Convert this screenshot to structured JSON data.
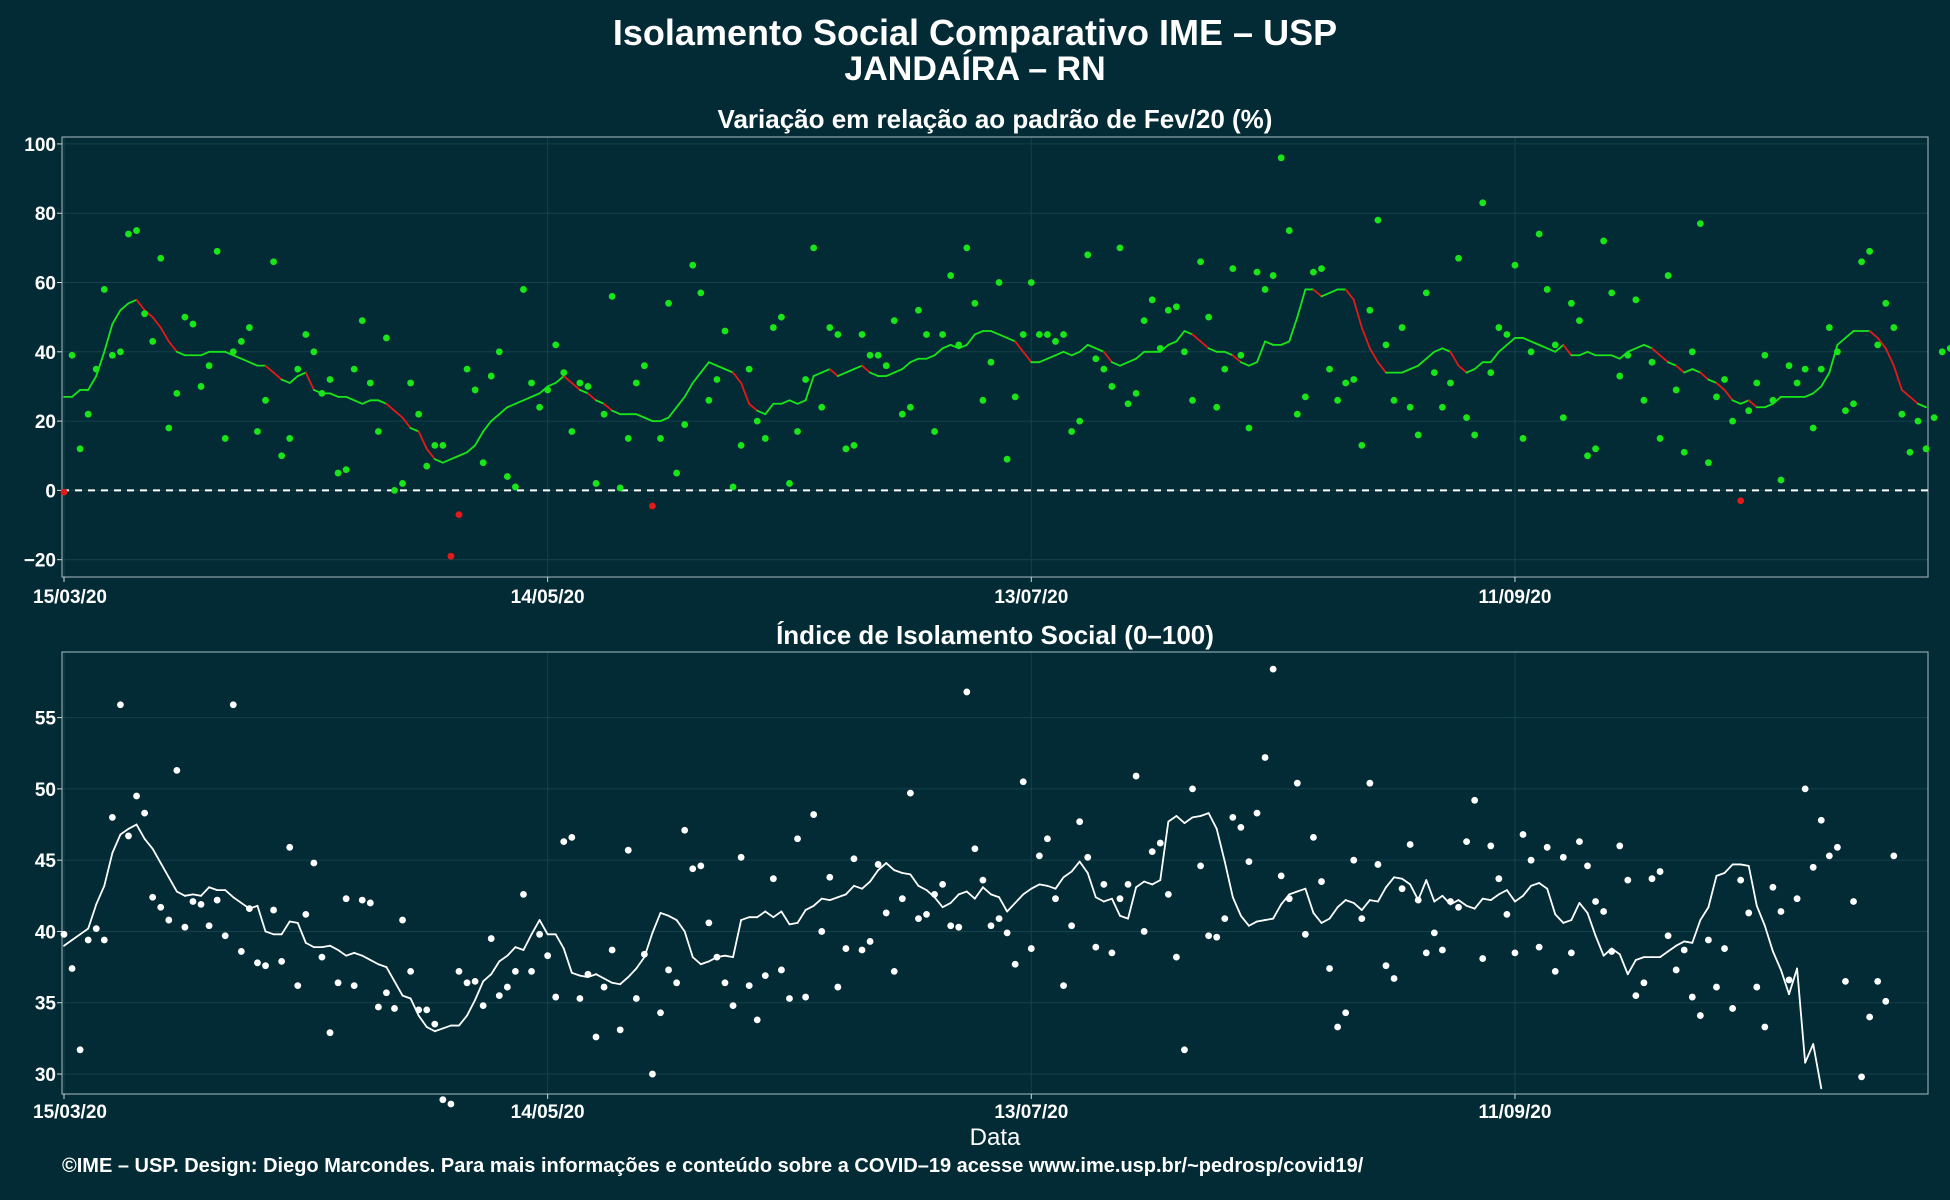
{
  "title": "Isolamento Social Comparativo IME – USP",
  "subtitle": "JANDAÍRA – RN",
  "footer": "©IME – USP. Design: Diego Marcondes. Para mais informações e conteúdo sobre a COVID–19 acesse www.ime.usp.br/~pedrosp/covid19/",
  "colors": {
    "background": "#022b35",
    "positive": "#19e619",
    "negative": "#e61919",
    "index": "#ffffff",
    "grid": "#14414b",
    "reference_line": "#ffffff"
  },
  "chart_data": [
    {
      "type": "scatter",
      "title": "Variação em relação ao padrão de Fev/20 (%)",
      "xlabel": "",
      "ylabel": "",
      "x_start": "2020-03-15",
      "days": 231,
      "xticks": [
        {
          "day": 0,
          "label": "15/03/20"
        },
        {
          "day": 60,
          "label": "14/05/20"
        },
        {
          "day": 120,
          "label": "13/07/20"
        },
        {
          "day": 180,
          "label": "11/09/20"
        }
      ],
      "ylim": [
        -25,
        102
      ],
      "yticks": [
        -20,
        0,
        20,
        40,
        60,
        80,
        100
      ],
      "ytick_labels": [
        "−20",
        "0",
        "20",
        "40",
        "60",
        "80",
        "100"
      ],
      "reference_line": 0,
      "grid": true,
      "series": [
        {
          "kind": "points",
          "values": [
            -0.5,
            39,
            12,
            22,
            35,
            58,
            39,
            40,
            74,
            75,
            51,
            43,
            67,
            18,
            28,
            50,
            48,
            30,
            36,
            69,
            15,
            40,
            43,
            47,
            17,
            26,
            66,
            10,
            15,
            35,
            45,
            40,
            28,
            32,
            5,
            6,
            35,
            49,
            31,
            17,
            44,
            0,
            2,
            31,
            22,
            7,
            13,
            13,
            -19,
            -7,
            35,
            29,
            8,
            33,
            40,
            4,
            1,
            58,
            31,
            24,
            29,
            42,
            34,
            17,
            31,
            30,
            2,
            22,
            56,
            0.7,
            15,
            31,
            36,
            -4.5,
            15,
            54,
            5,
            19,
            65,
            57,
            26,
            32,
            46,
            1,
            13,
            35,
            20,
            15,
            47,
            50,
            2,
            17,
            32,
            70,
            24,
            47,
            45,
            12,
            13,
            45,
            39,
            39,
            36,
            49,
            22,
            24,
            52,
            45,
            17,
            45,
            62,
            42,
            70,
            54,
            26,
            37,
            60,
            9,
            27,
            45,
            60,
            45,
            45,
            43,
            45,
            17,
            20,
            68,
            38,
            35,
            30,
            70,
            25,
            28,
            49,
            55,
            41,
            52,
            53,
            40,
            26,
            66,
            50,
            24,
            35,
            64,
            39,
            18,
            63,
            58,
            62,
            96,
            75,
            22,
            27,
            63,
            64,
            35,
            26,
            31,
            32,
            13,
            52,
            78,
            42,
            26,
            47,
            24,
            16,
            57,
            34,
            24,
            31,
            67,
            21,
            16,
            83,
            34,
            47,
            45,
            65,
            15,
            40,
            74,
            58,
            42,
            21,
            54,
            49,
            10,
            12,
            72,
            57,
            33,
            39,
            55,
            26,
            37,
            15,
            62,
            29,
            11,
            40,
            77,
            8,
            27,
            32,
            20,
            -3,
            23,
            31,
            39,
            26,
            3,
            36,
            31,
            35,
            18,
            35,
            47,
            40,
            23,
            25,
            66,
            69,
            42,
            54,
            47,
            22,
            11,
            20,
            12,
            21,
            40,
            41
          ]
        },
        {
          "kind": "moving_average",
          "values": [
            27,
            27,
            29,
            29,
            33,
            40,
            48,
            52,
            54,
            55,
            52,
            50,
            47,
            43,
            40,
            39,
            39,
            39,
            40,
            40,
            40,
            39,
            38,
            37,
            36,
            36,
            34,
            32,
            31,
            33,
            34,
            29,
            28,
            28,
            27,
            27,
            26,
            25,
            26,
            26,
            25,
            23,
            21,
            18,
            17,
            12,
            9,
            8,
            9,
            10,
            11,
            13,
            17,
            20,
            22,
            24,
            25,
            26,
            27,
            28,
            30,
            31,
            33,
            31,
            29,
            28,
            26,
            25,
            23,
            22,
            22,
            22,
            21,
            20,
            20,
            21,
            24,
            27,
            31,
            34,
            37,
            36,
            35,
            34,
            31,
            25,
            23,
            22,
            25,
            25,
            26,
            25,
            26,
            33,
            34,
            35,
            33,
            34,
            35,
            36,
            34,
            33,
            33,
            34,
            35,
            37,
            38,
            38,
            39,
            41,
            42,
            41,
            42,
            45,
            46,
            46,
            45,
            44,
            43,
            40,
            37,
            37,
            38,
            39,
            40,
            39,
            40,
            42,
            41,
            40,
            37,
            36,
            37,
            38,
            40,
            40,
            40,
            42,
            43,
            46,
            45,
            43,
            41,
            40,
            40,
            39,
            37,
            36,
            37,
            43,
            42,
            42,
            43,
            50,
            58,
            58,
            56,
            57,
            58,
            58,
            55,
            47,
            41,
            37,
            34,
            34,
            34,
            35,
            36,
            38,
            40,
            41,
            40,
            36,
            34,
            35,
            37,
            37,
            40,
            42,
            44,
            44,
            43,
            42,
            41,
            40,
            42,
            39,
            39,
            40,
            39,
            39,
            39,
            38,
            40,
            41,
            42,
            41,
            39,
            37,
            36,
            34,
            35,
            34,
            32,
            31,
            29,
            26,
            25,
            26,
            24,
            24,
            25,
            27,
            27,
            27,
            27,
            28,
            30,
            34,
            42,
            44,
            46,
            46,
            46,
            44,
            41,
            36,
            29,
            27,
            25,
            24
          ]
        }
      ]
    },
    {
      "type": "scatter",
      "title": "Índice de Isolamento Social (0–100)",
      "xlabel": "Data",
      "ylabel": "",
      "x_start": "2020-03-15",
      "days": 231,
      "xticks": [
        {
          "day": 0,
          "label": "15/03/20"
        },
        {
          "day": 60,
          "label": "14/05/20"
        },
        {
          "day": 120,
          "label": "13/07/20"
        },
        {
          "day": 180,
          "label": "11/09/20"
        }
      ],
      "ylim": [
        28.6,
        59.6
      ],
      "yticks": [
        30,
        35,
        40,
        45,
        50,
        55
      ],
      "ytick_labels": [
        "30",
        "35",
        "40",
        "45",
        "50",
        "55"
      ],
      "grid": true,
      "series": [
        {
          "kind": "points",
          "values": [
            39.8,
            37.4,
            31.7,
            39.4,
            40.2,
            39.4,
            48.0,
            55.9,
            46.7,
            49.5,
            48.3,
            42.4,
            41.7,
            40.8,
            51.3,
            40.3,
            42.1,
            41.9,
            40.4,
            42.2,
            39.7,
            55.9,
            38.6,
            41.6,
            37.8,
            37.6,
            41.5,
            37.9,
            45.9,
            36.2,
            41.2,
            44.8,
            38.2,
            32.9,
            36.4,
            42.3,
            36.2,
            42.2,
            42.0,
            34.7,
            35.7,
            34.6,
            40.8,
            37.2,
            34.5,
            34.5,
            33.5,
            28.2,
            27.9,
            37.2,
            36.4,
            36.5,
            34.8,
            39.5,
            35.5,
            36.1,
            37.2,
            42.6,
            37.2,
            39.8,
            38.3,
            35.4,
            46.3,
            46.6,
            35.3,
            37.0,
            32.6,
            36.1,
            38.7,
            33.1,
            45.7,
            35.3,
            38.4,
            30.0,
            34.3,
            37.3,
            36.4,
            47.1,
            44.4,
            44.6,
            40.6,
            38.2,
            36.4,
            34.8,
            45.2,
            36.2,
            33.8,
            36.9,
            43.7,
            37.3,
            35.3,
            46.5,
            35.4,
            48.2,
            40.0,
            43.8,
            36.1,
            38.8,
            45.1,
            38.7,
            39.3,
            44.7,
            41.3,
            37.2,
            42.3,
            49.7,
            40.9,
            41.2,
            42.6,
            43.3,
            40.4,
            40.3,
            56.8,
            45.8,
            43.6,
            40.4,
            40.9,
            39.9,
            37.7,
            50.5,
            38.8,
            45.3,
            46.5,
            42.3,
            36.2,
            40.4,
            47.7,
            45.2,
            38.9,
            43.3,
            38.5,
            42.3,
            43.3,
            50.9,
            40.0,
            45.6,
            46.2,
            42.6,
            38.2,
            31.7,
            50.0,
            44.6,
            39.7,
            39.6,
            40.9,
            48.0,
            47.3,
            44.9,
            48.3,
            52.2,
            58.4,
            43.9,
            42.3,
            50.4,
            39.8,
            46.6,
            43.5,
            37.4,
            33.3,
            34.3,
            45.0,
            40.9,
            50.4,
            44.7,
            37.6,
            36.7,
            43.0,
            46.1,
            42.2,
            38.5,
            39.9,
            38.7,
            42.1,
            41.7,
            46.3,
            49.2,
            38.1,
            46.0,
            43.7,
            41.2,
            38.5,
            46.8,
            45.0,
            38.9,
            45.9,
            37.2,
            45.2,
            38.5,
            46.3,
            44.6,
            42.1,
            41.4,
            38.6,
            46.0,
            43.6,
            35.5,
            36.4,
            43.7,
            44.2,
            39.7,
            37.3,
            38.7,
            35.4,
            34.1,
            39.4,
            36.1,
            38.8,
            34.6,
            43.6,
            41.3,
            36.1,
            33.3,
            43.1,
            41.4,
            36.6,
            42.3,
            50.0,
            44.5,
            47.8,
            45.3,
            45.9,
            36.5,
            42.1,
            29.8,
            34.0,
            36.5,
            35.1,
            45.3
          ]
        },
        {
          "kind": "moving_average",
          "values": [
            39,
            39.4,
            39.8,
            40.2,
            41.9,
            43.2,
            45.5,
            46.8,
            47.2,
            47.5,
            46.5,
            45.8,
            44.8,
            43.8,
            42.8,
            42.5,
            42.6,
            42.5,
            43.1,
            42.9,
            42.9,
            42.4,
            42.0,
            41.6,
            41.8,
            40.0,
            39.8,
            39.8,
            40.7,
            40.6,
            39.2,
            38.9,
            38.9,
            39.0,
            38.7,
            38.3,
            38.5,
            38.3,
            38.0,
            37.7,
            37.5,
            36.5,
            35.5,
            35.3,
            34.1,
            33.3,
            33.0,
            33.2,
            33.4,
            33.4,
            34.1,
            35.2,
            36.5,
            37.0,
            37.9,
            38.3,
            38.9,
            38.7,
            39.8,
            40.8,
            39.8,
            39.8,
            38.8,
            37.1,
            36.9,
            36.8,
            37.0,
            36.7,
            36.4,
            36.3,
            36.8,
            37.4,
            38.2,
            39.9,
            41.3,
            41.1,
            40.8,
            40.0,
            38.2,
            37.7,
            37.9,
            38.2,
            38.3,
            38.2,
            40.8,
            41.0,
            41.0,
            41.4,
            41.0,
            41.4,
            40.5,
            40.6,
            41.5,
            41.8,
            42.3,
            42.2,
            42.4,
            42.6,
            43.2,
            43.0,
            43.5,
            44.3,
            44.8,
            44.3,
            44.1,
            44.0,
            43.2,
            42.9,
            42.4,
            41.7,
            42.0,
            42.6,
            42.8,
            42.3,
            43.1,
            42.6,
            42.4,
            41.4,
            42.0,
            42.6,
            43.0,
            43.3,
            43.2,
            43.0,
            43.8,
            44.2,
            44.9,
            44.1,
            42.4,
            42.1,
            42.3,
            41.1,
            40.9,
            43.1,
            43.5,
            43.3,
            43.6,
            47.7,
            48.1,
            47.6,
            48.0,
            48.1,
            48.3,
            47.2,
            44.9,
            42.4,
            41.1,
            40.4,
            40.7,
            40.8,
            40.9,
            41.9,
            42.6,
            42.8,
            43.0,
            41.3,
            40.6,
            40.9,
            41.7,
            42.2,
            42.0,
            41.5,
            42.2,
            42.1,
            43.1,
            43.8,
            43.7,
            43.3,
            42.2,
            43.6,
            42.1,
            42.5,
            41.9,
            42.2,
            41.8,
            41.6,
            42.3,
            42.2,
            42.6,
            42.9,
            42.1,
            42.5,
            43.2,
            43.4,
            43.0,
            41.2,
            40.6,
            40.8,
            42.0,
            41.3,
            39.7,
            38.3,
            38.8,
            38.4,
            37.0,
            38.0,
            38.2,
            38.2,
            38.2,
            38.6,
            39.0,
            39.3,
            39.2,
            40.8,
            41.7,
            43.9,
            44.1,
            44.7,
            44.7,
            44.6,
            41.8,
            40.4,
            38.6,
            37.3,
            35.6,
            37.4,
            30.8,
            32.1,
            29.0
          ]
        }
      ]
    }
  ]
}
